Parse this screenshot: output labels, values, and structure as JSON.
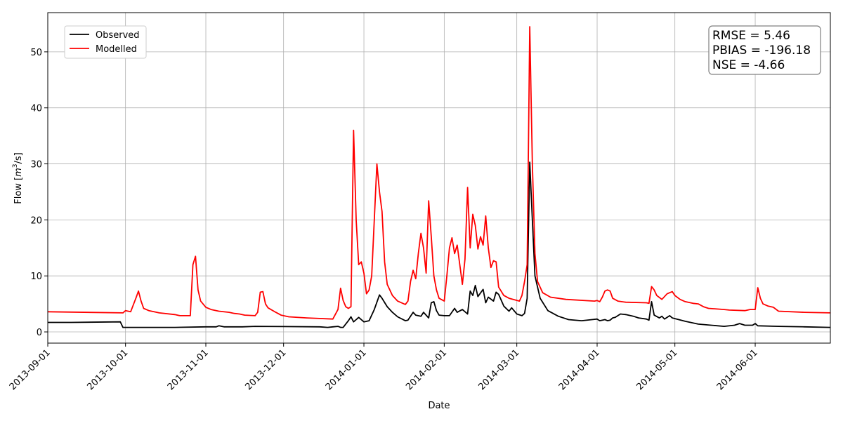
{
  "chart_data": {
    "type": "line",
    "xlabel": "Date",
    "ylabel": "Flow [m³/s]",
    "ylabel_parts": {
      "prefix": "Flow [",
      "unit_base": "m",
      "unit_exp": "3",
      "unit_rest": "/s]"
    },
    "xlim": [
      "2013-09-01",
      "2014-06-30"
    ],
    "ylim": [
      -2,
      57
    ],
    "x_ticks": [
      "2013-09-01",
      "2013-10-01",
      "2013-11-01",
      "2013-12-01",
      "2014-01-01",
      "2014-02-01",
      "2014-03-01",
      "2014-04-01",
      "2014-05-01",
      "2014-06-01"
    ],
    "y_ticks": [
      0,
      10,
      20,
      30,
      40,
      50
    ],
    "grid": true,
    "legend_position": "top-left",
    "annotation_lines": [
      "RMSE = 5.46",
      "PBIAS = -196.18",
      "NSE = -4.66"
    ],
    "series": [
      {
        "name": "Observed",
        "color": "#000000",
        "points": [
          [
            "2013-09-01",
            1.7
          ],
          [
            "2013-09-10",
            1.7
          ],
          [
            "2013-09-29",
            1.8
          ],
          [
            "2013-09-30",
            0.8
          ],
          [
            "2013-10-20",
            0.8
          ],
          [
            "2013-11-01",
            0.9
          ],
          [
            "2013-11-05",
            0.9
          ],
          [
            "2013-11-06",
            1.1
          ],
          [
            "2013-11-08",
            0.9
          ],
          [
            "2013-11-15",
            0.9
          ],
          [
            "2013-11-20",
            1.0
          ],
          [
            "2013-12-01",
            0.95
          ],
          [
            "2013-12-15",
            0.9
          ],
          [
            "2013-12-18",
            0.8
          ],
          [
            "2013-12-20",
            0.9
          ],
          [
            "2013-12-22",
            1.0
          ],
          [
            "2013-12-23",
            0.8
          ],
          [
            "2013-12-24",
            0.8
          ],
          [
            "2013-12-26",
            2.0
          ],
          [
            "2013-12-27",
            2.7
          ],
          [
            "2013-12-28",
            1.8
          ],
          [
            "2013-12-29",
            2.2
          ],
          [
            "2013-12-30",
            2.6
          ],
          [
            "2014-01-01",
            1.8
          ],
          [
            "2014-01-03",
            2.0
          ],
          [
            "2014-01-05",
            4.0
          ],
          [
            "2014-01-07",
            6.6
          ],
          [
            "2014-01-08",
            6.0
          ],
          [
            "2014-01-10",
            4.5
          ],
          [
            "2014-01-12",
            3.5
          ],
          [
            "2014-01-14",
            2.7
          ],
          [
            "2014-01-17",
            2.0
          ],
          [
            "2014-01-18",
            2.1
          ],
          [
            "2014-01-20",
            3.5
          ],
          [
            "2014-01-21",
            3.0
          ],
          [
            "2014-01-23",
            2.8
          ],
          [
            "2014-01-24",
            3.5
          ],
          [
            "2014-01-26",
            2.5
          ],
          [
            "2014-01-27",
            5.2
          ],
          [
            "2014-01-28",
            5.4
          ],
          [
            "2014-01-29",
            3.8
          ],
          [
            "2014-01-30",
            3.0
          ],
          [
            "2014-02-01",
            2.9
          ],
          [
            "2014-02-03",
            2.9
          ],
          [
            "2014-02-05",
            4.2
          ],
          [
            "2014-02-06",
            3.5
          ],
          [
            "2014-02-08",
            4.0
          ],
          [
            "2014-02-10",
            3.2
          ],
          [
            "2014-02-11",
            7.3
          ],
          [
            "2014-02-12",
            6.5
          ],
          [
            "2014-02-13",
            8.3
          ],
          [
            "2014-02-14",
            6.3
          ],
          [
            "2014-02-16",
            7.6
          ],
          [
            "2014-02-17",
            5.2
          ],
          [
            "2014-02-18",
            6.2
          ],
          [
            "2014-02-20",
            5.5
          ],
          [
            "2014-02-21",
            7.1
          ],
          [
            "2014-02-22",
            6.7
          ],
          [
            "2014-02-24",
            4.6
          ],
          [
            "2014-02-26",
            3.7
          ],
          [
            "2014-02-27",
            4.3
          ],
          [
            "2014-03-01",
            3.2
          ],
          [
            "2014-03-03",
            2.9
          ],
          [
            "2014-03-04",
            3.3
          ],
          [
            "2014-03-05",
            6.0
          ],
          [
            "2014-03-06",
            30.3
          ],
          [
            "2014-03-07",
            20.0
          ],
          [
            "2014-03-08",
            10.0
          ],
          [
            "2014-03-10",
            6.0
          ],
          [
            "2014-03-13",
            3.8
          ],
          [
            "2014-03-17",
            2.8
          ],
          [
            "2014-03-21",
            2.2
          ],
          [
            "2014-03-26",
            2.0
          ],
          [
            "2014-03-30",
            2.2
          ],
          [
            "2014-04-01",
            2.3
          ],
          [
            "2014-04-02",
            2.0
          ],
          [
            "2014-04-04",
            2.2
          ],
          [
            "2014-04-05",
            2.0
          ],
          [
            "2014-04-06",
            2.1
          ],
          [
            "2014-04-07",
            2.5
          ],
          [
            "2014-04-08",
            2.6
          ],
          [
            "2014-04-10",
            3.2
          ],
          [
            "2014-04-12",
            3.1
          ],
          [
            "2014-04-15",
            2.8
          ],
          [
            "2014-04-17",
            2.5
          ],
          [
            "2014-04-20",
            2.3
          ],
          [
            "2014-04-21",
            2.1
          ],
          [
            "2014-04-22",
            5.4
          ],
          [
            "2014-04-23",
            3.0
          ],
          [
            "2014-04-25",
            2.5
          ],
          [
            "2014-04-26",
            2.8
          ],
          [
            "2014-04-27",
            2.3
          ],
          [
            "2014-04-29",
            2.9
          ],
          [
            "2014-04-30",
            2.5
          ],
          [
            "2014-05-05",
            1.9
          ],
          [
            "2014-05-10",
            1.4
          ],
          [
            "2014-05-15",
            1.2
          ],
          [
            "2014-05-20",
            1.0
          ],
          [
            "2014-05-24",
            1.2
          ],
          [
            "2014-05-26",
            1.5
          ],
          [
            "2014-05-28",
            1.2
          ],
          [
            "2014-05-31",
            1.2
          ],
          [
            "2014-06-01",
            1.5
          ],
          [
            "2014-06-02",
            1.1
          ],
          [
            "2014-06-10",
            1.0
          ],
          [
            "2014-06-20",
            0.9
          ],
          [
            "2014-06-30",
            0.8
          ]
        ]
      },
      {
        "name": "Modelled",
        "color": "#ff0000",
        "points": [
          [
            "2013-09-01",
            3.6
          ],
          [
            "2013-09-30",
            3.4
          ],
          [
            "2013-10-01",
            3.8
          ],
          [
            "2013-10-03",
            3.6
          ],
          [
            "2013-10-05",
            6.0
          ],
          [
            "2013-10-06",
            7.3
          ],
          [
            "2013-10-07",
            5.5
          ],
          [
            "2013-10-08",
            4.2
          ],
          [
            "2013-10-10",
            3.8
          ],
          [
            "2013-10-12",
            3.6
          ],
          [
            "2013-10-14",
            3.4
          ],
          [
            "2013-10-20",
            3.1
          ],
          [
            "2013-10-22",
            2.9
          ],
          [
            "2013-10-26",
            2.9
          ],
          [
            "2013-10-27",
            12.0
          ],
          [
            "2013-10-28",
            13.5
          ],
          [
            "2013-10-29",
            7.5
          ],
          [
            "2013-10-30",
            5.5
          ],
          [
            "2013-11-01",
            4.4
          ],
          [
            "2013-11-03",
            4.0
          ],
          [
            "2013-11-06",
            3.7
          ],
          [
            "2013-11-10",
            3.5
          ],
          [
            "2013-11-12",
            3.3
          ],
          [
            "2013-11-14",
            3.2
          ],
          [
            "2013-11-16",
            3.0
          ],
          [
            "2013-11-20",
            2.9
          ],
          [
            "2013-11-21",
            3.5
          ],
          [
            "2013-11-22",
            7.1
          ],
          [
            "2013-11-23",
            7.2
          ],
          [
            "2013-11-24",
            5.0
          ],
          [
            "2013-11-25",
            4.3
          ],
          [
            "2013-11-28",
            3.5
          ],
          [
            "2013-11-30",
            3.0
          ],
          [
            "2013-12-03",
            2.7
          ],
          [
            "2013-12-10",
            2.5
          ],
          [
            "2013-12-20",
            2.3
          ],
          [
            "2013-12-22",
            4.0
          ],
          [
            "2013-12-23",
            7.8
          ],
          [
            "2013-12-24",
            5.6
          ],
          [
            "2013-12-25",
            4.5
          ],
          [
            "2013-12-26",
            4.2
          ],
          [
            "2013-12-27",
            4.5
          ],
          [
            "2013-12-28",
            36.0
          ],
          [
            "2013-12-29",
            20.0
          ],
          [
            "2013-12-30",
            12.0
          ],
          [
            "2013-12-31",
            12.5
          ],
          [
            "2014-01-01",
            10.5
          ],
          [
            "2014-01-02",
            6.8
          ],
          [
            "2014-01-03",
            7.5
          ],
          [
            "2014-01-04",
            10.0
          ],
          [
            "2014-01-06",
            30.0
          ],
          [
            "2014-01-07",
            25.0
          ],
          [
            "2014-01-08",
            21.5
          ],
          [
            "2014-01-09",
            12.5
          ],
          [
            "2014-01-10",
            8.5
          ],
          [
            "2014-01-12",
            6.5
          ],
          [
            "2014-01-14",
            5.5
          ],
          [
            "2014-01-17",
            4.9
          ],
          [
            "2014-01-18",
            5.5
          ],
          [
            "2014-01-19",
            9.0
          ],
          [
            "2014-01-20",
            11.0
          ],
          [
            "2014-01-21",
            9.5
          ],
          [
            "2014-01-22",
            14.0
          ],
          [
            "2014-01-23",
            17.6
          ],
          [
            "2014-01-24",
            15.0
          ],
          [
            "2014-01-25",
            10.5
          ],
          [
            "2014-01-26",
            23.4
          ],
          [
            "2014-01-27",
            17.0
          ],
          [
            "2014-01-28",
            10.0
          ],
          [
            "2014-01-29",
            7.5
          ],
          [
            "2014-01-30",
            6.0
          ],
          [
            "2014-02-01",
            5.5
          ],
          [
            "2014-02-02",
            10.0
          ],
          [
            "2014-02-03",
            15.0
          ],
          [
            "2014-02-04",
            16.8
          ],
          [
            "2014-02-05",
            14.0
          ],
          [
            "2014-02-06",
            15.5
          ],
          [
            "2014-02-07",
            12.0
          ],
          [
            "2014-02-08",
            8.5
          ],
          [
            "2014-02-09",
            13.0
          ],
          [
            "2014-02-10",
            25.8
          ],
          [
            "2014-02-11",
            15.0
          ],
          [
            "2014-02-12",
            21.0
          ],
          [
            "2014-02-13",
            19.0
          ],
          [
            "2014-02-14",
            14.8
          ],
          [
            "2014-02-15",
            17.0
          ],
          [
            "2014-02-16",
            15.5
          ],
          [
            "2014-02-17",
            20.7
          ],
          [
            "2014-02-18",
            15.0
          ],
          [
            "2014-02-19",
            11.5
          ],
          [
            "2014-02-20",
            12.7
          ],
          [
            "2014-02-21",
            12.5
          ],
          [
            "2014-02-22",
            8.0
          ],
          [
            "2014-02-24",
            6.5
          ],
          [
            "2014-02-26",
            6.0
          ],
          [
            "2014-03-02",
            5.5
          ],
          [
            "2014-03-03",
            6.5
          ],
          [
            "2014-03-04",
            9.0
          ],
          [
            "2014-03-05",
            12.0
          ],
          [
            "2014-03-06",
            54.5
          ],
          [
            "2014-03-07",
            30.0
          ],
          [
            "2014-03-08",
            14.0
          ],
          [
            "2014-03-09",
            9.0
          ],
          [
            "2014-03-11",
            7.0
          ],
          [
            "2014-03-14",
            6.2
          ],
          [
            "2014-03-20",
            5.8
          ],
          [
            "2014-03-31",
            5.5
          ],
          [
            "2014-04-01",
            5.6
          ],
          [
            "2014-04-02",
            5.4
          ],
          [
            "2014-04-03",
            6.2
          ],
          [
            "2014-04-04",
            7.3
          ],
          [
            "2014-04-05",
            7.5
          ],
          [
            "2014-04-06",
            7.3
          ],
          [
            "2014-04-07",
            6.0
          ],
          [
            "2014-04-09",
            5.5
          ],
          [
            "2014-04-12",
            5.3
          ],
          [
            "2014-04-20",
            5.2
          ],
          [
            "2014-04-21",
            5.1
          ],
          [
            "2014-04-22",
            8.1
          ],
          [
            "2014-04-23",
            7.5
          ],
          [
            "2014-04-24",
            6.5
          ],
          [
            "2014-04-26",
            5.8
          ],
          [
            "2014-04-28",
            6.8
          ],
          [
            "2014-04-30",
            7.2
          ],
          [
            "2014-05-01",
            6.5
          ],
          [
            "2014-05-03",
            5.8
          ],
          [
            "2014-05-05",
            5.4
          ],
          [
            "2014-05-08",
            5.1
          ],
          [
            "2014-05-10",
            5.0
          ],
          [
            "2014-05-12",
            4.5
          ],
          [
            "2014-05-14",
            4.2
          ],
          [
            "2014-05-20",
            4.0
          ],
          [
            "2014-05-22",
            3.9
          ],
          [
            "2014-05-28",
            3.8
          ],
          [
            "2014-05-30",
            4.0
          ],
          [
            "2014-06-01",
            4.0
          ],
          [
            "2014-06-02",
            7.9
          ],
          [
            "2014-06-03",
            6.0
          ],
          [
            "2014-06-04",
            5.0
          ],
          [
            "2014-06-06",
            4.6
          ],
          [
            "2014-06-08",
            4.4
          ],
          [
            "2014-06-10",
            3.7
          ],
          [
            "2014-06-20",
            3.5
          ],
          [
            "2014-06-30",
            3.4
          ]
        ]
      }
    ]
  }
}
